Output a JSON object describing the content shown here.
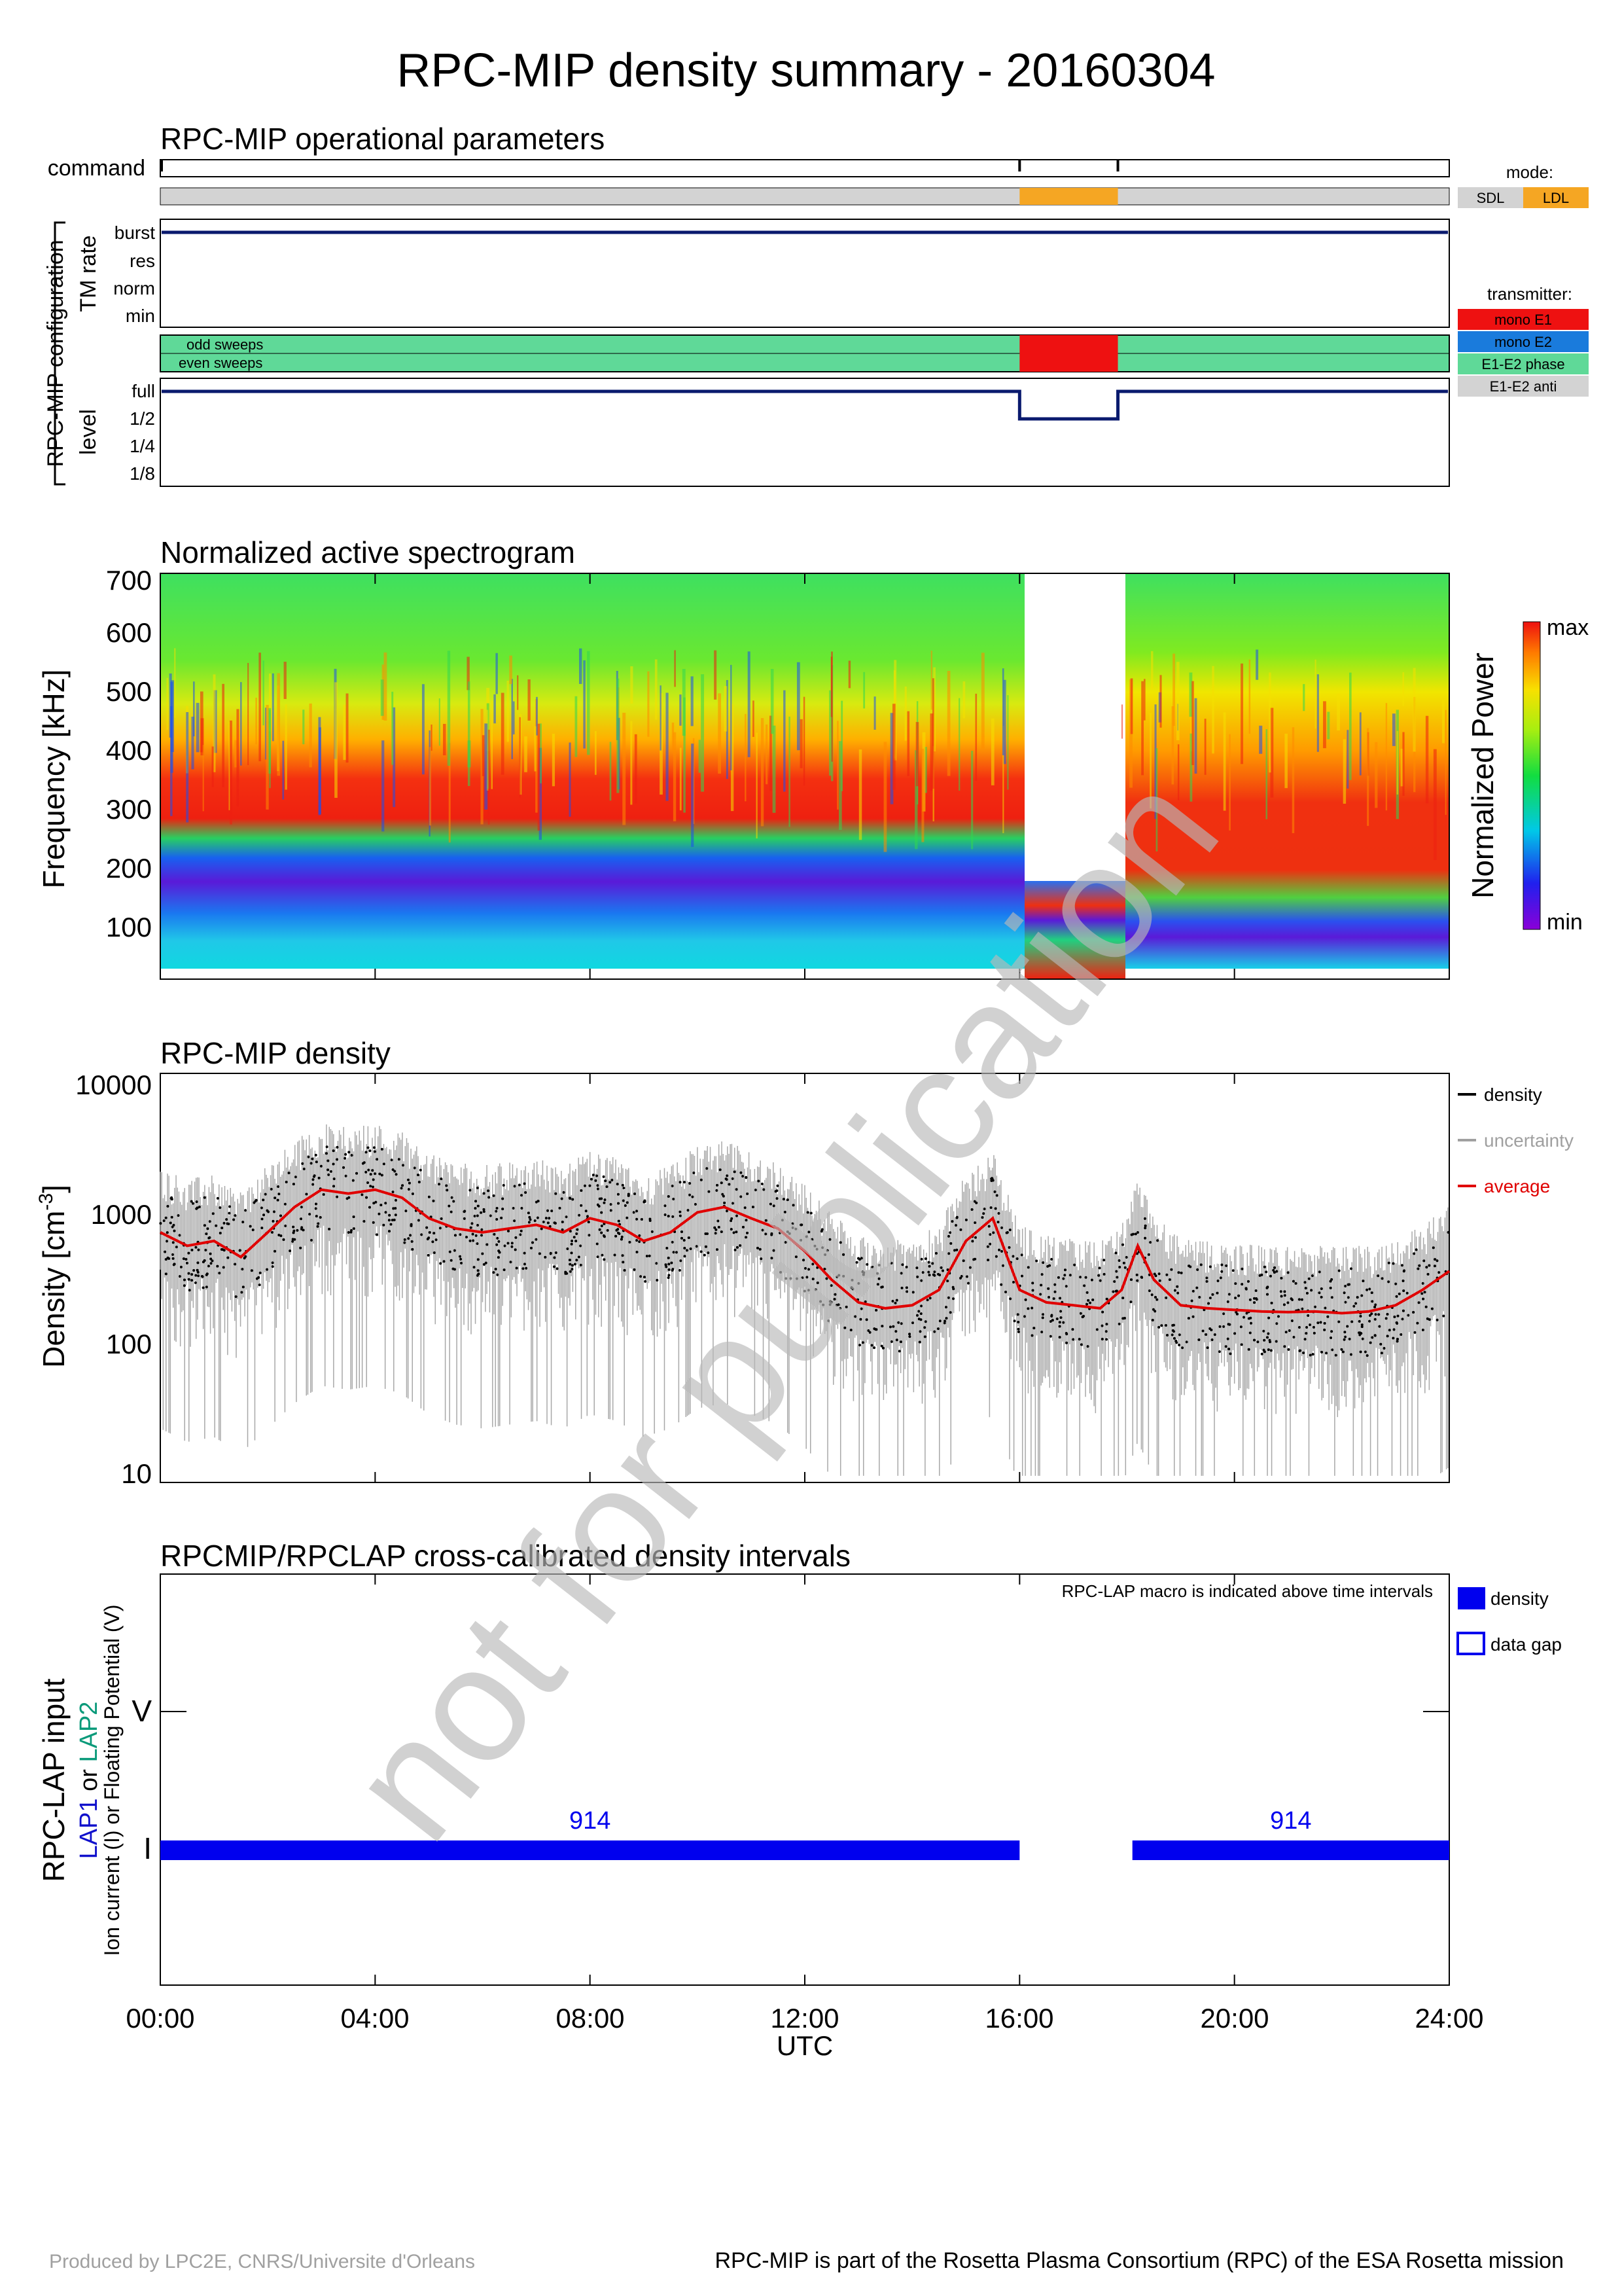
{
  "page": {
    "title": "RPC-MIP density summary - 20160304",
    "footer_left": "Produced by LPC2E, CNRS/Universite d'Orleans",
    "footer_right": "RPC-MIP is part of the Rosetta Plasma Consortium (RPC) of the ESA Rosetta mission",
    "watermark": "not for publication"
  },
  "ops": {
    "title": "RPC-MIP operational parameters",
    "command_label": "command",
    "config_label": "RPC-MIP configuration",
    "tm_rate_label": "TM rate",
    "tm_levels": [
      "burst",
      "res",
      "norm",
      "min"
    ],
    "odd_label": "odd sweeps",
    "even_label": "even sweeps",
    "level_label": "level",
    "levels": [
      "full",
      "1/2",
      "1/4",
      "1/8"
    ],
    "mode_title": "mode:",
    "mode_sdl": "SDL",
    "mode_ldl": "LDL",
    "tx_title": "transmitter:",
    "tx_items": [
      "mono E1",
      "mono E2",
      "E1-E2 phase",
      "E1-E2 anti"
    ],
    "colors": {
      "sdl": "#d3d3d3",
      "ldl": "#f5a623",
      "mono_e1": "#ee1111",
      "mono_e2": "#1a7bdc",
      "phase": "#5fd998",
      "anti": "#d3d3d3",
      "navy": "#0a1a6e"
    },
    "command_ticks_hours": [
      16.0,
      17.83
    ],
    "ldl_interval_hours": [
      16.0,
      17.83
    ],
    "half_level_interval_hours": [
      16.0,
      17.83
    ],
    "tm_rate": "burst"
  },
  "spectrogram": {
    "title": "Normalized active spectrogram",
    "ylabel": "Frequency [kHz]",
    "yticks": [
      "100",
      "200",
      "300",
      "400",
      "500",
      "600",
      "700"
    ],
    "cbar_label": "Normalized Power",
    "cbar_max": "max",
    "cbar_min": "min",
    "gap_hours": [
      16.0,
      17.83
    ]
  },
  "density": {
    "title": "RPC-MIP density",
    "ylabel": "Density [cm",
    "ylabel_sup": "-3",
    "ylabel_end": "]",
    "yticks": [
      "10",
      "100",
      "1000",
      "10000"
    ],
    "legend": [
      "density",
      "uncertainty",
      "average"
    ],
    "colors": {
      "density": "#000000",
      "uncertainty": "#a0a0a0",
      "average": "#e00000"
    }
  },
  "lap": {
    "title": "RPCMIP/RPCLAP cross-calibrated density intervals",
    "note": "RPC-LAP macro is indicated above time intervals",
    "ylabel_main": "RPC-LAP input",
    "ylabel_lap1": "LAP1",
    "ylabel_or": " or ",
    "ylabel_lap2": "LAP2",
    "ylabel_line3": "Ion current (I) or Floating Potential (V)",
    "ytick_v": "V",
    "ytick_i": "I",
    "legend_density": "density",
    "legend_gap": "data gap",
    "macros": [
      "914",
      "914"
    ],
    "intervals_hours": [
      [
        0.0,
        16.0
      ],
      [
        18.1,
        24.0
      ]
    ],
    "colors": {
      "bar": "#0000ee",
      "lap1": "#1010cc",
      "lap2": "#0a9a7a"
    }
  },
  "xaxis": {
    "ticks": [
      "00:00",
      "04:00",
      "08:00",
      "12:00",
      "16:00",
      "20:00",
      "24:00"
    ],
    "label": "UTC"
  },
  "chart_data": {
    "type": "line",
    "title": "RPC-MIP density summary - 20160304",
    "xlabel": "UTC",
    "ylabel": "Density [cm-3]",
    "yscale": "log",
    "xlim": [
      0,
      24
    ],
    "ylim": [
      8,
      12000
    ],
    "series": [
      {
        "name": "average",
        "x": [
          0.0,
          0.5,
          1.0,
          1.5,
          2.0,
          2.5,
          3.0,
          3.5,
          4.0,
          4.5,
          5.0,
          5.5,
          6.0,
          6.5,
          7.0,
          7.5,
          8.0,
          8.5,
          9.0,
          9.5,
          10.0,
          10.5,
          11.0,
          11.5,
          12.0,
          12.5,
          13.0,
          13.5,
          14.0,
          14.5,
          15.0,
          15.5,
          16.0,
          16.5,
          17.0,
          17.5,
          17.9,
          18.2,
          18.5,
          19.0,
          19.5,
          20.0,
          20.5,
          21.0,
          21.5,
          22.0,
          22.5,
          23.0,
          23.5,
          24.0
        ],
        "y": [
          700,
          550,
          600,
          450,
          700,
          1100,
          1500,
          1400,
          1500,
          1300,
          900,
          750,
          700,
          750,
          800,
          700,
          900,
          800,
          600,
          700,
          1000,
          1100,
          900,
          750,
          500,
          300,
          200,
          180,
          190,
          250,
          600,
          900,
          250,
          200,
          190,
          180,
          250,
          550,
          300,
          190,
          180,
          175,
          170,
          168,
          170,
          165,
          170,
          190,
          250,
          350
        ]
      }
    ]
  }
}
